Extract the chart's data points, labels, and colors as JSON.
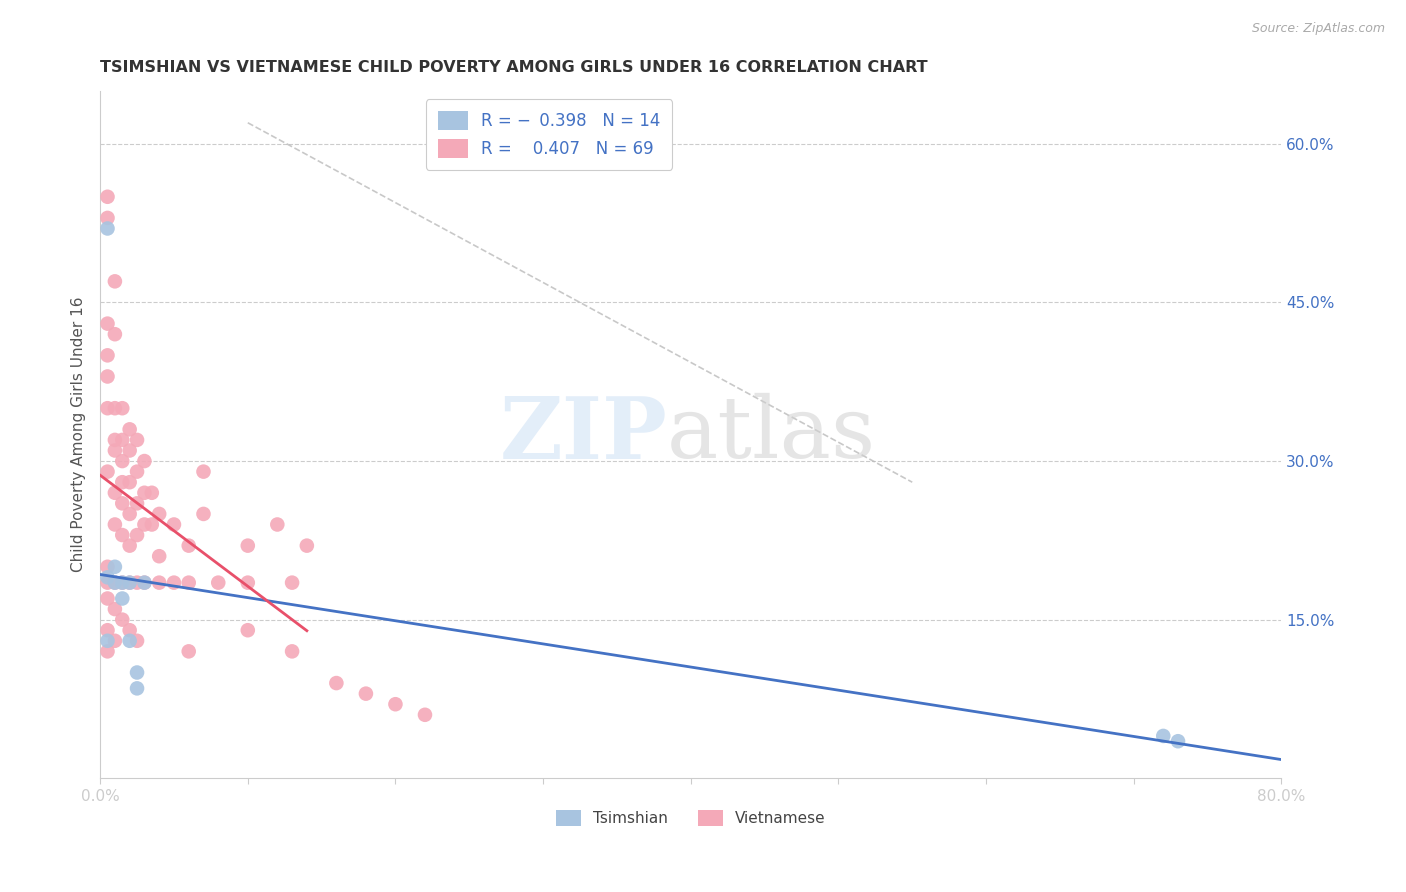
{
  "title": "TSIMSHIAN VS VIETNAMESE CHILD POVERTY AMONG GIRLS UNDER 16 CORRELATION CHART",
  "source": "Source: ZipAtlas.com",
  "ylabel": "Child Poverty Among Girls Under 16",
  "xlim": [
    0.0,
    0.8
  ],
  "ylim": [
    0.0,
    0.65
  ],
  "yticks_right": [
    0.15,
    0.3,
    0.45,
    0.6
  ],
  "ytick_labels_right": [
    "15.0%",
    "30.0%",
    "45.0%",
    "60.0%"
  ],
  "tsimshian_color": "#a8c4e0",
  "vietnamese_color": "#f4a9b8",
  "tsimshian_line_color": "#4472c4",
  "vietnamese_line_color": "#e8506a",
  "background_color": "#ffffff",
  "tsimshian_x": [
    0.005,
    0.005,
    0.005,
    0.01,
    0.01,
    0.015,
    0.015,
    0.02,
    0.02,
    0.025,
    0.025,
    0.03,
    0.72,
    0.73
  ],
  "tsimshian_y": [
    0.52,
    0.19,
    0.13,
    0.2,
    0.185,
    0.185,
    0.17,
    0.185,
    0.13,
    0.1,
    0.085,
    0.185,
    0.04,
    0.035
  ],
  "vietnamese_x": [
    0.005,
    0.005,
    0.005,
    0.005,
    0.005,
    0.005,
    0.005,
    0.01,
    0.01,
    0.01,
    0.01,
    0.01,
    0.01,
    0.01,
    0.015,
    0.015,
    0.015,
    0.015,
    0.015,
    0.015,
    0.02,
    0.02,
    0.02,
    0.02,
    0.02,
    0.025,
    0.025,
    0.025,
    0.025,
    0.03,
    0.03,
    0.03,
    0.035,
    0.035,
    0.04,
    0.04,
    0.05,
    0.06,
    0.07,
    0.07,
    0.1,
    0.12,
    0.14,
    0.005,
    0.005,
    0.005,
    0.005,
    0.005,
    0.01,
    0.01,
    0.01,
    0.015,
    0.015,
    0.02,
    0.02,
    0.025,
    0.025,
    0.03,
    0.04,
    0.05,
    0.06,
    0.06,
    0.08,
    0.1,
    0.1,
    0.13,
    0.13,
    0.16,
    0.18,
    0.2,
    0.22
  ],
  "vietnamese_y": [
    0.55,
    0.53,
    0.43,
    0.4,
    0.38,
    0.35,
    0.29,
    0.47,
    0.42,
    0.35,
    0.32,
    0.31,
    0.27,
    0.24,
    0.35,
    0.32,
    0.3,
    0.28,
    0.26,
    0.23,
    0.33,
    0.31,
    0.28,
    0.25,
    0.22,
    0.32,
    0.29,
    0.26,
    0.23,
    0.3,
    0.27,
    0.24,
    0.27,
    0.24,
    0.25,
    0.21,
    0.24,
    0.22,
    0.29,
    0.25,
    0.22,
    0.24,
    0.22,
    0.2,
    0.185,
    0.17,
    0.14,
    0.12,
    0.185,
    0.16,
    0.13,
    0.185,
    0.15,
    0.185,
    0.14,
    0.185,
    0.13,
    0.185,
    0.185,
    0.185,
    0.185,
    0.12,
    0.185,
    0.185,
    0.14,
    0.185,
    0.12,
    0.09,
    0.08,
    0.07,
    0.06
  ]
}
